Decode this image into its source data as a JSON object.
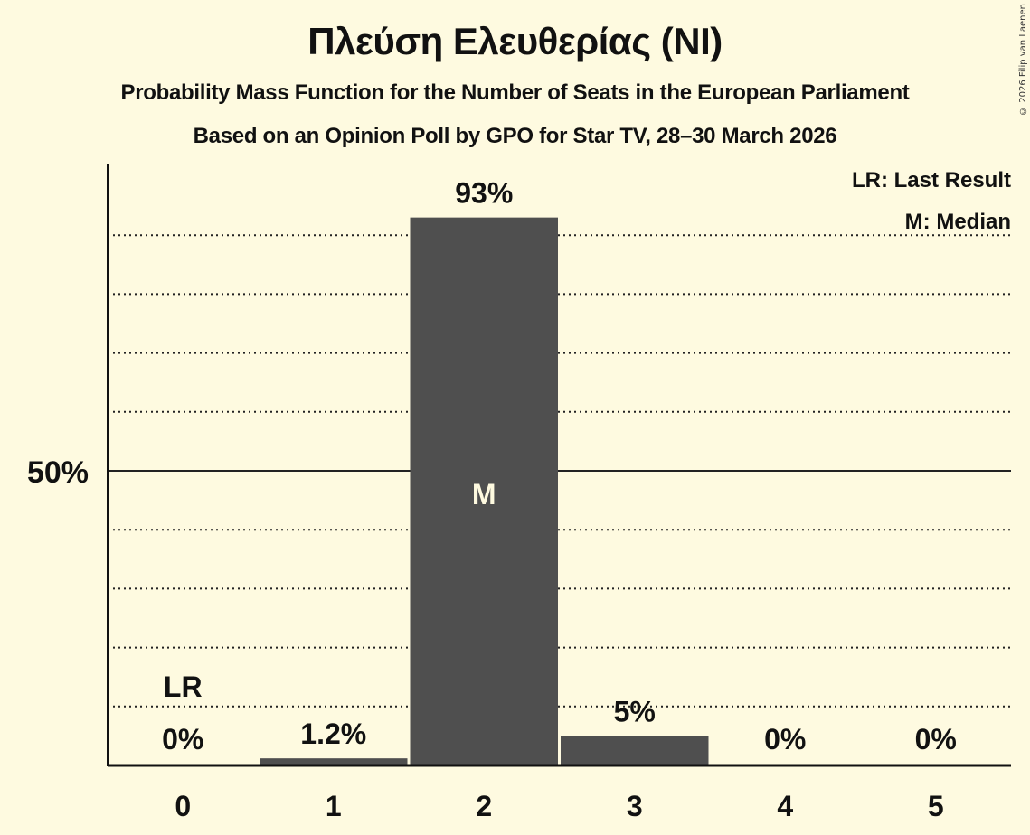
{
  "header": {
    "title": "Πλεύση Ελευθερίας (NI)",
    "subtitle_1": "Probability Mass Function for the Number of Seats in the European Parliament",
    "subtitle_2": "Based on an Opinion Poll by GPO for Star TV, 28–30 March 2026",
    "copyright": "© 2026 Filip van Laenen"
  },
  "legend": {
    "last_result": "LR: Last Result",
    "median": "M: Median"
  },
  "colors": {
    "background": "#fefae0",
    "bar": "#4f4f4f",
    "text": "#111111",
    "median_label": "#fefae0"
  },
  "chart_data": {
    "type": "bar",
    "title": "Πλεύση Ελευθερίας (NI)",
    "subtitle": "Probability Mass Function for the Number of Seats in the European Parliament — Based on an Opinion Poll by GPO for Star TV, 28–30 March 2026",
    "xlabel": "",
    "ylabel": "",
    "categories": [
      "0",
      "1",
      "2",
      "3",
      "4",
      "5"
    ],
    "values": [
      0,
      1.2,
      93,
      5,
      0,
      0
    ],
    "value_labels": [
      "0%",
      "1.2%",
      "93%",
      "5%",
      "0%",
      "0%"
    ],
    "ylim": [
      0,
      100
    ],
    "y_ticks_labeled": [
      {
        "value": 50,
        "label": "50%"
      }
    ],
    "gridlines": [
      10,
      20,
      30,
      40,
      50,
      60,
      70,
      80,
      90
    ],
    "grid": true,
    "annotations": [
      {
        "category": "0",
        "text": "LR",
        "meaning": "Last Result"
      },
      {
        "category": "2",
        "text": "M",
        "meaning": "Median"
      }
    ],
    "legend_position": "top-right"
  }
}
